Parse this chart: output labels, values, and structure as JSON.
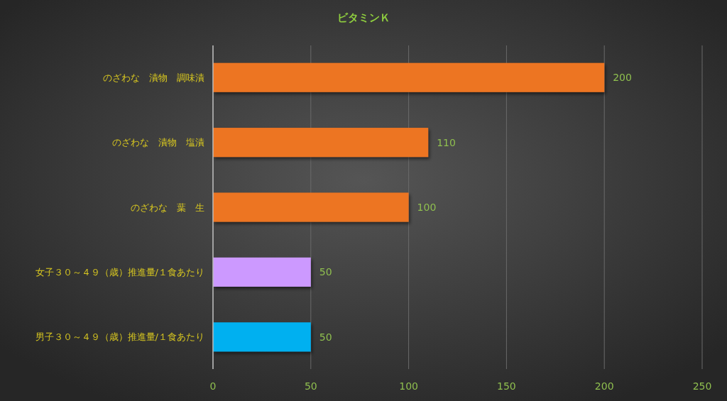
{
  "chart_data": {
    "type": "bar",
    "orientation": "horizontal",
    "title": "ビタミンＫ",
    "categories": [
      "のざわな　漬物　調味漬",
      "のざわな　漬物　塩漬",
      "のざわな　葉　生",
      "女子３０～４９（歳）推進量/１食あたり",
      "男子３０～４９（歳）推進量/１食あたり"
    ],
    "values": [
      200,
      110,
      100,
      50,
      50
    ],
    "colors": [
      "#ed7424",
      "#ed7424",
      "#ed7424",
      "#cc99ff",
      "#00b0f0"
    ],
    "xlim": [
      0,
      250
    ],
    "xticks": [
      0,
      50,
      100,
      150,
      200,
      250
    ],
    "grid": "x",
    "data_labels": true
  }
}
